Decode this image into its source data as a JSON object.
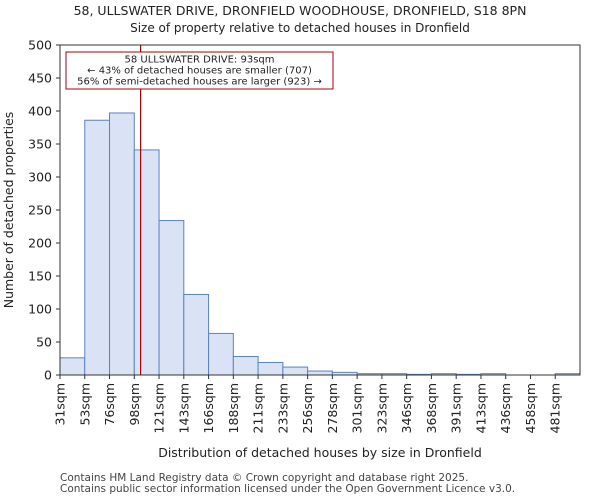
{
  "chart_data": {
    "type": "bar",
    "title_line1": "58, ULLSWATER DRIVE, DRONFIELD WOODHOUSE, DRONFIELD, S18 8PN",
    "title_line2": "Size of property relative to detached houses in Dronfield",
    "xlabel": "Distribution of detached houses by size in Dronfield",
    "ylabel": "Number of detached properties",
    "categories": [
      "31sqm",
      "53sqm",
      "76sqm",
      "98sqm",
      "121sqm",
      "143sqm",
      "166sqm",
      "188sqm",
      "211sqm",
      "233sqm",
      "256sqm",
      "278sqm",
      "301sqm",
      "323sqm",
      "346sqm",
      "368sqm",
      "391sqm",
      "413sqm",
      "436sqm",
      "458sqm",
      "481sqm"
    ],
    "values": [
      26,
      386,
      397,
      341,
      234,
      122,
      63,
      28,
      19,
      12,
      6,
      4,
      2,
      2,
      1,
      2,
      1,
      2,
      0,
      0,
      2
    ],
    "yticks": [
      0,
      50,
      100,
      150,
      200,
      250,
      300,
      350,
      400,
      450,
      500
    ],
    "ylim": [
      0,
      500
    ],
    "marker_value": 93,
    "marker_color": "#aa0000",
    "bar_fill": "#dae3f5",
    "bar_edge": "#5a82c0",
    "annotation": {
      "line1": "58 ULLSWATER DRIVE: 93sqm",
      "line2": "← 43% of detached houses are smaller (707)",
      "line3": "56% of semi-detached houses are larger (923) →"
    }
  },
  "footer": {
    "line1": "Contains HM Land Registry data © Crown copyright and database right 2025.",
    "line2": "Contains public sector information licensed under the Open Government Licence v3.0."
  }
}
